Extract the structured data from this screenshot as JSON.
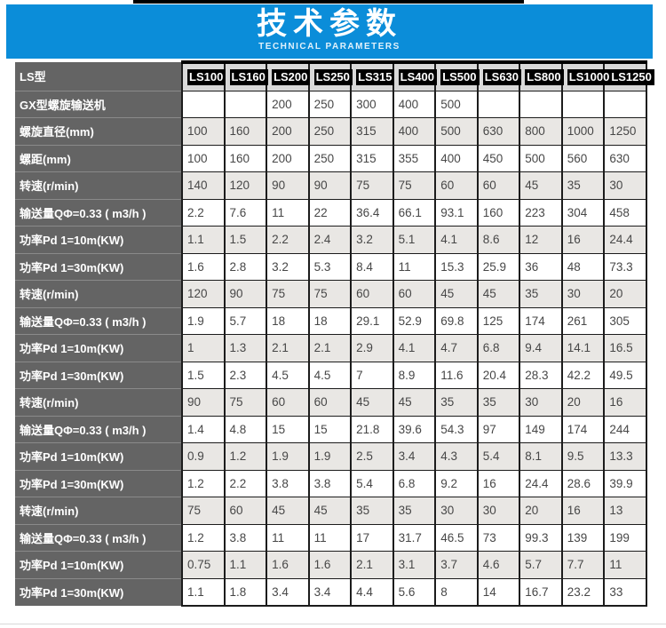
{
  "banner": {
    "title": "技术参数",
    "subtitle": "TECHNICAL PARAMETERS"
  },
  "colors": {
    "banner_blue": "#0b8dd9",
    "label_column_gray": "#646464",
    "header_row_gray": "#d9d9d9",
    "alt_row_gray": "#e9e7e4",
    "badge_black": "#000000",
    "border_black": "#1c1c1c",
    "value_text": "#474747"
  },
  "table": {
    "header": {
      "label": "LS型",
      "models": [
        "LS100",
        "LS160",
        "LS200",
        "LS250",
        "LS315",
        "LS400",
        "LS500",
        "LS630",
        "LS800",
        "LS1000",
        "LS1250"
      ]
    },
    "rows": [
      {
        "label": "GX型螺旋输送机",
        "values": [
          "",
          "",
          "200",
          "250",
          "300",
          "400",
          "500",
          "",
          "",
          "",
          ""
        ]
      },
      {
        "label": "螺旋直径(mm)",
        "values": [
          "100",
          "160",
          "200",
          "250",
          "315",
          "400",
          "500",
          "630",
          "800",
          "1000",
          "1250"
        ]
      },
      {
        "label": "螺距(mm)",
        "values": [
          "100",
          "160",
          "200",
          "250",
          "315",
          "355",
          "400",
          "450",
          "500",
          "560",
          "630"
        ]
      },
      {
        "label": "转速(r/min)",
        "values": [
          "140",
          "120",
          "90",
          "90",
          "75",
          "75",
          "60",
          "60",
          "45",
          "35",
          "30"
        ]
      },
      {
        "label": "输送量QΦ=0.33 ( m3/h )",
        "values": [
          "2.2",
          "7.6",
          "11",
          "22",
          "36.4",
          "66.1",
          "93.1",
          "160",
          "223",
          "304",
          "458"
        ]
      },
      {
        "label": "功率Pd 1=10m(KW)",
        "values": [
          "1.1",
          "1.5",
          "2.2",
          "2.4",
          "3.2",
          "5.1",
          "4.1",
          "8.6",
          "12",
          "16",
          "24.4"
        ]
      },
      {
        "label": "功率Pd 1=30m(KW)",
        "values": [
          "1.6",
          "2.8",
          "3.2",
          "5.3",
          "8.4",
          "11",
          "15.3",
          "25.9",
          "36",
          "48",
          "73.3"
        ]
      },
      {
        "label": "转速(r/min)",
        "values": [
          "120",
          "90",
          "75",
          "75",
          "60",
          "60",
          "45",
          "45",
          "35",
          "30",
          "20"
        ]
      },
      {
        "label": "输送量QΦ=0.33 ( m3/h )",
        "values": [
          "1.9",
          "5.7",
          "18",
          "18",
          "29.1",
          "52.9",
          "69.8",
          "125",
          "174",
          "261",
          "305"
        ]
      },
      {
        "label": "功率Pd 1=10m(KW)",
        "values": [
          "1",
          "1.3",
          "2.1",
          "2.1",
          "2.9",
          "4.1",
          "4.7",
          "6.8",
          "9.4",
          "14.1",
          "16.5"
        ]
      },
      {
        "label": "功率Pd 1=30m(KW)",
        "values": [
          "1.5",
          "2.3",
          "4.5",
          "4.5",
          "7",
          "8.9",
          "11.6",
          "20.4",
          "28.3",
          "42.2",
          "49.5"
        ]
      },
      {
        "label": "转速(r/min)",
        "values": [
          "90",
          "75",
          "60",
          "60",
          "45",
          "45",
          "35",
          "35",
          "30",
          "20",
          "16"
        ]
      },
      {
        "label": "输送量QΦ=0.33 ( m3/h )",
        "values": [
          "1.4",
          "4.8",
          "15",
          "15",
          "21.8",
          "39.6",
          "54.3",
          "97",
          "149",
          "174",
          "244"
        ]
      },
      {
        "label": "功率Pd 1=10m(KW)",
        "values": [
          "0.9",
          "1.2",
          "1.9",
          "1.9",
          "2.5",
          "3.4",
          "4.3",
          "5.4",
          "8.1",
          "9.5",
          "13.3"
        ]
      },
      {
        "label": "功率Pd 1=30m(KW)",
        "values": [
          "1.2",
          "2.2",
          "3.8",
          "3.8",
          "5.4",
          "6.8",
          "9.2",
          "16",
          "24.4",
          "28.6",
          "39.9"
        ]
      },
      {
        "label": "转速(r/min)",
        "values": [
          "75",
          "60",
          "45",
          "45",
          "35",
          "35",
          "30",
          "30",
          "20",
          "16",
          "13"
        ]
      },
      {
        "label": "输送量QΦ=0.33 ( m3/h )",
        "values": [
          "1.2",
          "3.8",
          "11",
          "11",
          "17",
          "31.7",
          "46.5",
          "73",
          "99.3",
          "139",
          "199"
        ]
      },
      {
        "label": "功率Pd 1=10m(KW)",
        "values": [
          "0.75",
          "1.1",
          "1.6",
          "1.6",
          "2.1",
          "3.1",
          "3.7",
          "4.6",
          "5.7",
          "7.7",
          "11"
        ]
      },
      {
        "label": "功率Pd 1=30m(KW)",
        "values": [
          "1.1",
          "1.8",
          "3.4",
          "3.4",
          "4.4",
          "5.6",
          "8",
          "14",
          "16.7",
          "23.2",
          "33"
        ]
      }
    ]
  }
}
